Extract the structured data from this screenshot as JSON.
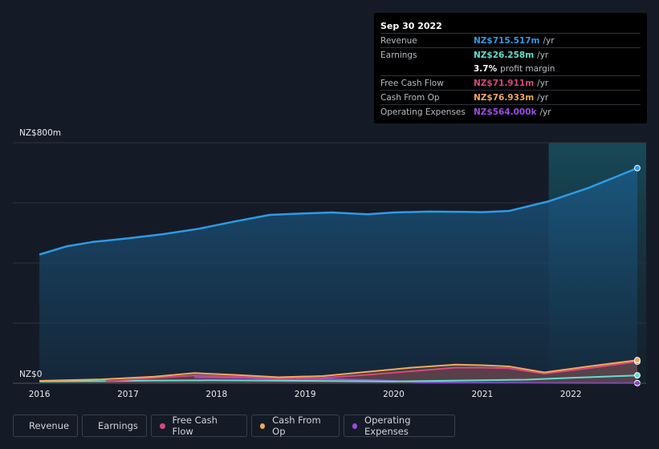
{
  "chart_data": {
    "type": "area",
    "y_top_label": "NZ$800m",
    "y_bottom_label": "NZ$0",
    "ylim": [
      0,
      800
    ],
    "x_ticks": [
      "2016",
      "2017",
      "2018",
      "2019",
      "2020",
      "2021",
      "2022"
    ],
    "x_tick_values": [
      2016.0,
      2017.0,
      2018.0,
      2019.0,
      2020.0,
      2021.0,
      2022.0
    ],
    "xlim": [
      2015.7,
      2022.85
    ],
    "forecast_start": 2021.75,
    "series": [
      {
        "name": "Revenue",
        "color": "#2d9be6",
        "x": [
          2016.0,
          2016.3,
          2016.6,
          2017.0,
          2017.4,
          2017.8,
          2018.2,
          2018.6,
          2019.0,
          2019.3,
          2019.7,
          2020.0,
          2020.4,
          2020.8,
          2021.0,
          2021.3,
          2021.75,
          2022.2,
          2022.75
        ],
        "values": [
          428,
          455,
          470,
          482,
          496,
          514,
          538,
          560,
          565,
          568,
          562,
          568,
          571,
          570,
          569,
          573,
          605,
          650,
          715.517
        ]
      },
      {
        "name": "Earnings",
        "color": "#5ee0cf",
        "x": [
          2016.0,
          2016.7,
          2017.3,
          2017.9,
          2018.5,
          2019.0,
          2019.5,
          2020.0,
          2020.5,
          2021.0,
          2021.5,
          2022.0,
          2022.75
        ],
        "values": [
          6,
          7,
          9,
          10,
          9,
          8,
          7,
          6,
          8,
          10,
          12,
          18,
          26.258
        ]
      },
      {
        "name": "Free Cash Flow",
        "color": "#d8487a",
        "x": [
          2016.75,
          2017.3,
          2017.75,
          2018.2,
          2018.7,
          2019.2,
          2019.7,
          2020.2,
          2020.7,
          2021.0,
          2021.3,
          2021.7,
          2022.2,
          2022.75
        ],
        "values": [
          6,
          18,
          26,
          22,
          16,
          18,
          28,
          40,
          52,
          52,
          50,
          32,
          50,
          71.911
        ]
      },
      {
        "name": "Cash From Op",
        "color": "#f0a95a",
        "x": [
          2016.0,
          2016.7,
          2017.3,
          2017.75,
          2018.2,
          2018.7,
          2019.2,
          2019.7,
          2020.2,
          2020.7,
          2021.0,
          2021.3,
          2021.7,
          2022.2,
          2022.75
        ],
        "values": [
          8,
          13,
          22,
          34,
          28,
          20,
          24,
          38,
          52,
          62,
          60,
          56,
          36,
          56,
          76.933
        ]
      },
      {
        "name": "Operating Expenses",
        "color": "#9b4be8",
        "x": [
          2017.75,
          2018.3,
          2018.8,
          2019.3,
          2019.8,
          2020.3,
          2020.8,
          2021.3,
          2021.8,
          2022.3,
          2022.75
        ],
        "values": [
          20,
          18,
          12,
          14,
          10,
          4,
          2,
          1.5,
          1,
          0.8,
          0.564
        ]
      }
    ]
  },
  "tooltip": {
    "date": "Sep 30 2022",
    "revenue_label": "Revenue",
    "revenue_value": "NZ$715.517m",
    "earnings_label": "Earnings",
    "earnings_value": "NZ$26.258m",
    "margin_value": "3.7%",
    "margin_text": "profit margin",
    "fcf_label": "Free Cash Flow",
    "fcf_value": "NZ$71.911m",
    "cfo_label": "Cash From Op",
    "cfo_value": "NZ$76.933m",
    "opex_label": "Operating Expenses",
    "opex_value": "NZ$564.000k",
    "unit": "/yr"
  },
  "legend": [
    {
      "label": "Revenue",
      "color": "#2d9be6"
    },
    {
      "label": "Earnings",
      "color": "#5ee0cf"
    },
    {
      "label": "Free Cash Flow",
      "color": "#d8487a"
    },
    {
      "label": "Cash From Op",
      "color": "#f0a95a"
    },
    {
      "label": "Operating Expenses",
      "color": "#9b4be8"
    }
  ]
}
